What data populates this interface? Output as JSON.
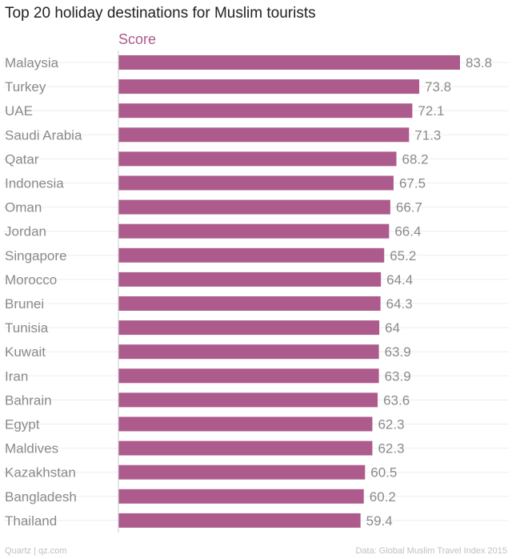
{
  "title": "Top 20 holiday destinations for Muslim tourists",
  "footer": {
    "left": "Quartz | qz.com",
    "right": "Data: Global Muslim Travel Index 2015"
  },
  "colors": {
    "bar": "#ad5a8c",
    "series_label": "#ad5a8c",
    "category_text": "#8a8a8a",
    "value_text": "#8a8a8a",
    "gridline": "#eeeeee",
    "axis": "#cccccc"
  },
  "chart_data": {
    "type": "bar",
    "orientation": "horizontal",
    "xlim": [
      0,
      83.8
    ],
    "grid": true,
    "categories": [
      "Malaysia",
      "Turkey",
      "UAE",
      "Saudi Arabia",
      "Qatar",
      "Indonesia",
      "Oman",
      "Jordan",
      "Singapore",
      "Morocco",
      "Brunei",
      "Tunisia",
      "Kuwait",
      "Iran",
      "Bahrain",
      "Egypt",
      "Maldives",
      "Kazakhstan",
      "Bangladesh",
      "Thailand"
    ],
    "series": [
      {
        "name": "Score",
        "values": [
          83.8,
          73.8,
          72.1,
          71.3,
          68.2,
          67.5,
          66.7,
          66.4,
          65.2,
          64.4,
          64.3,
          64,
          63.9,
          63.9,
          63.6,
          62.3,
          62.3,
          60.5,
          60.2,
          59.4
        ]
      }
    ]
  }
}
